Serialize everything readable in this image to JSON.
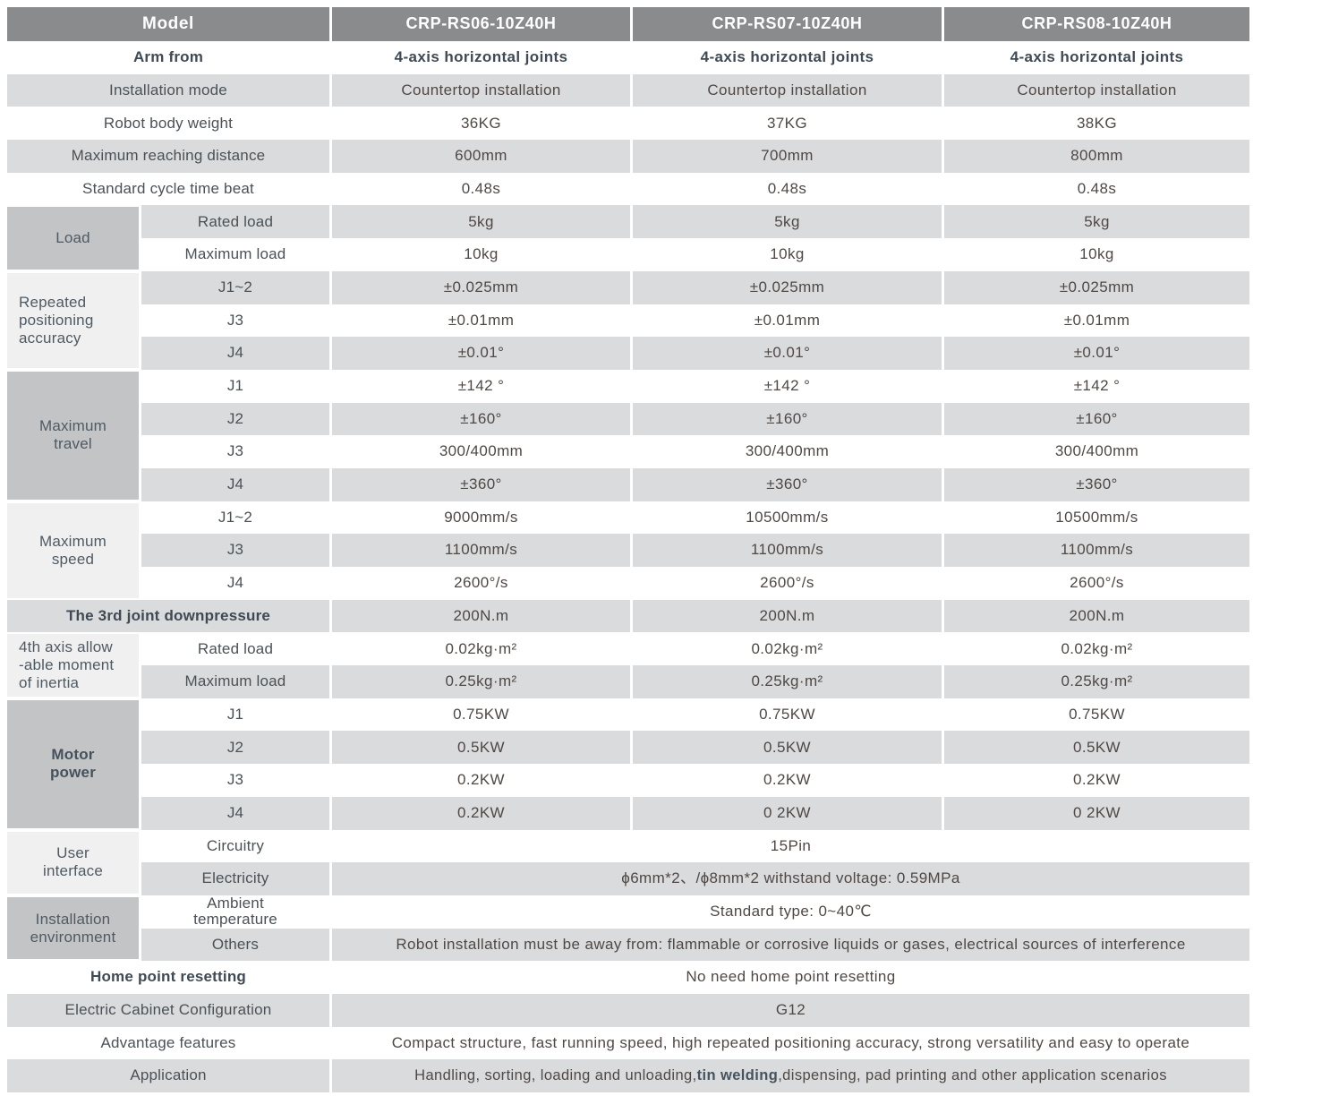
{
  "table": {
    "colors": {
      "header_bg": "#898b8d",
      "header_text": "#ffffff",
      "row_gray_bg": "#dadbdc",
      "row_white_bg": "#ffffff",
      "group_medium_bg": "#c3c4c6",
      "group_light_bg": "#f0f0f1",
      "label_text": "#4a5157",
      "value_text": "#4f4845"
    },
    "header": {
      "model_label": "Model",
      "models": [
        "CRP-RS06-10Z40H",
        "CRP-RS07-10Z40H",
        "CRP-RS08-10Z40H"
      ]
    },
    "groups": [
      {
        "label": "Load",
        "row": 7,
        "span": 2,
        "tone": "medium"
      },
      {
        "label": "Repeated positioning accuracy",
        "lines": [
          "Repeated",
          "positioning",
          "accuracy"
        ],
        "row": 9,
        "span": 3,
        "tone": "light",
        "align": "left"
      },
      {
        "label": "Maximum travel",
        "lines": [
          "Maximum",
          "travel"
        ],
        "row": 12,
        "span": 4,
        "tone": "medium"
      },
      {
        "label": "Maximum speed",
        "lines": [
          "Maximum",
          "speed"
        ],
        "row": 16,
        "span": 3,
        "tone": "light"
      },
      {
        "label": "4th axis allow-able moment of inertia",
        "lines": [
          "4th axis allow",
          "-able moment",
          "of inertia"
        ],
        "row": 20,
        "span": 2,
        "tone": "light",
        "align": "left"
      },
      {
        "label": "Motor power",
        "lines": [
          "Motor",
          "power"
        ],
        "row": 22,
        "span": 4,
        "tone": "medium",
        "bold": true
      },
      {
        "label": "User interface",
        "lines": [
          "User",
          "interface"
        ],
        "row": 26,
        "span": 2,
        "tone": "light"
      },
      {
        "label": "Installation environment",
        "lines": [
          "Installation",
          "environment"
        ],
        "row": 28,
        "span": 2,
        "tone": "medium"
      }
    ],
    "rows": [
      {
        "label": "Arm from",
        "span": "full",
        "bold": true,
        "values": [
          "4-axis horizontal joints",
          "4-axis horizontal joints",
          "4-axis horizontal joints"
        ],
        "values_bold": true
      },
      {
        "label": "Installation mode",
        "span": "full",
        "values": [
          "Countertop installation",
          "Countertop installation",
          "Countertop installation"
        ]
      },
      {
        "label": "Robot body weight",
        "span": "full",
        "values": [
          "36KG",
          "37KG",
          "38KG"
        ]
      },
      {
        "label": "Maximum reaching distance",
        "span": "full",
        "values": [
          "600mm",
          "700mm",
          "800mm"
        ]
      },
      {
        "label": "Standard cycle time beat",
        "span": "full",
        "values": [
          "0.48s",
          "0.48s",
          "0.48s"
        ]
      },
      {
        "label": "Rated load",
        "span": "sub",
        "values": [
          "5kg",
          "5kg",
          "5kg"
        ]
      },
      {
        "label": "Maximum load",
        "span": "sub",
        "values": [
          "10kg",
          "10kg",
          "10kg"
        ]
      },
      {
        "label": "J1~2",
        "span": "sub",
        "values": [
          "±0.025mm",
          "±0.025mm",
          "±0.025mm"
        ]
      },
      {
        "label": "J3",
        "span": "sub",
        "values": [
          "±0.01mm",
          "±0.01mm",
          "±0.01mm"
        ]
      },
      {
        "label": "J4",
        "span": "sub",
        "values": [
          "±0.01°",
          "±0.01°",
          "±0.01°"
        ]
      },
      {
        "label": "J1",
        "span": "sub",
        "values": [
          "±142 °",
          "±142 °",
          "±142 °"
        ]
      },
      {
        "label": "J2",
        "span": "sub",
        "values": [
          "±160°",
          "±160°",
          "±160°"
        ]
      },
      {
        "label": "J3",
        "span": "sub",
        "values": [
          "300/400mm",
          "300/400mm",
          "300/400mm"
        ]
      },
      {
        "label": "J4",
        "span": "sub",
        "values": [
          "±360°",
          "±360°",
          "±360°"
        ]
      },
      {
        "label": "J1~2",
        "span": "sub",
        "values": [
          "9000mm/s",
          "10500mm/s",
          "10500mm/s"
        ]
      },
      {
        "label": "J3",
        "span": "sub",
        "values": [
          "1100mm/s",
          "1100mm/s",
          "1100mm/s"
        ]
      },
      {
        "label": "J4",
        "span": "sub",
        "values": [
          "2600°/s",
          "2600°/s",
          "2600°/s"
        ]
      },
      {
        "label": "The 3rd joint downpressure",
        "span": "full",
        "bold": true,
        "values": [
          "200N.m",
          "200N.m",
          "200N.m"
        ]
      },
      {
        "label": "Rated load",
        "span": "sub",
        "values": [
          "0.02kg·m²",
          "0.02kg·m²",
          "0.02kg·m²"
        ]
      },
      {
        "label": "Maximum load",
        "span": "sub",
        "values": [
          "0.25kg·m²",
          "0.25kg·m²",
          "0.25kg·m²"
        ]
      },
      {
        "label": "J1",
        "span": "sub",
        "values": [
          "0.75KW",
          "0.75KW",
          "0.75KW"
        ]
      },
      {
        "label": "J2",
        "span": "sub",
        "values": [
          "0.5KW",
          "0.5KW",
          "0.5KW"
        ]
      },
      {
        "label": "J3",
        "span": "sub",
        "values": [
          "0.2KW",
          "0.2KW",
          "0.2KW"
        ]
      },
      {
        "label": "J4",
        "span": "sub",
        "values": [
          "0.2KW",
          "0 2KW",
          "0 2KW"
        ]
      },
      {
        "label": "Circuitry",
        "span": "sub",
        "merged": "15Pin"
      },
      {
        "label": "Electricity",
        "span": "sub",
        "merged": "ϕ6mm*2、/ϕ8mm*2  withstand voltage: 0.59MPa"
      },
      {
        "label": "Ambient temperature",
        "label_lines": [
          "Ambient",
          "temperature"
        ],
        "span": "sub",
        "merged": "Standard type:   0~40℃"
      },
      {
        "label": "Others",
        "span": "sub",
        "merged": "Robot installation must be away from: flammable or corrosive liquids or gases, electrical sources of interference"
      },
      {
        "label": "Home point resetting",
        "span": "full",
        "bold": true,
        "merged": "No need home point resetting"
      },
      {
        "label": "Electric Cabinet Configuration",
        "span": "full",
        "merged": "G12"
      },
      {
        "label": "Advantage features",
        "span": "full",
        "merged": "Compact structure, fast running speed, high repeated positioning accuracy, strong versatility and easy to operate"
      },
      {
        "label": "Application",
        "span": "full",
        "merged_parts": [
          {
            "text": "Handling, sorting, loading and unloading,"
          },
          {
            "text": "tin welding",
            "bold": true
          },
          {
            "text": ",dispensing, pad printing and other application scenarios"
          }
        ]
      }
    ]
  }
}
